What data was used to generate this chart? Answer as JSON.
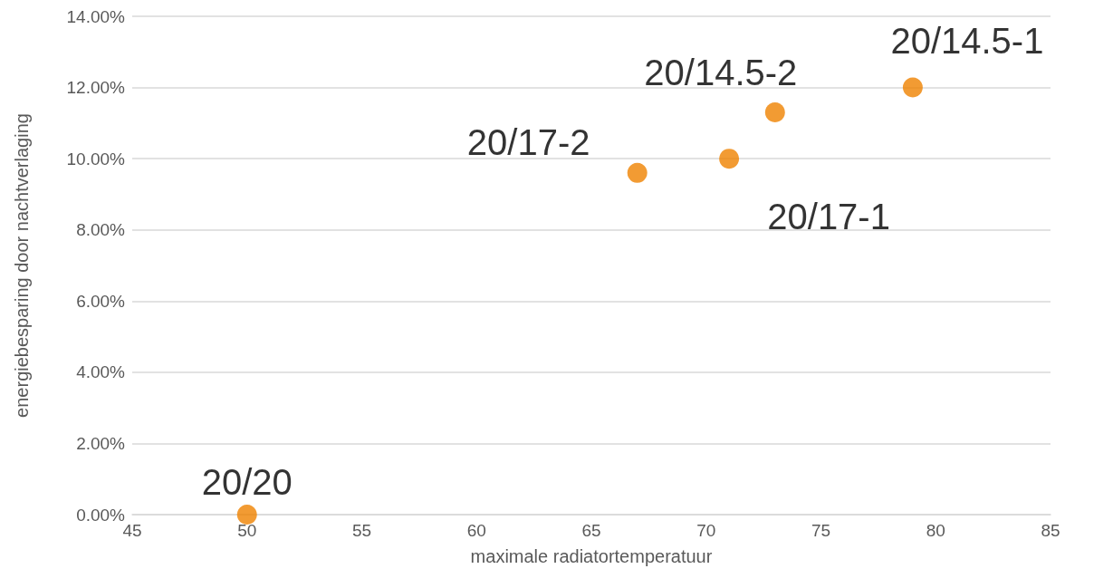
{
  "chart_data": {
    "type": "scatter",
    "xlabel": "maximale radiatortemperatuur",
    "ylabel": "energiebesparing door nachtverlaging",
    "x": [
      50,
      67,
      71,
      73,
      79
    ],
    "series": [
      {
        "color": "#ef8200",
        "values": [
          0,
          9.6,
          10.0,
          11.3,
          12.0
        ]
      }
    ],
    "annotations": [
      {
        "text": "20/20",
        "x": 50,
        "y": 0
      },
      {
        "text": "20/17-2",
        "x": 67,
        "y": 9.6
      },
      {
        "text": "20/17-1",
        "x": 71,
        "y": 10.0
      },
      {
        "text": "20/14.5-2",
        "x": 73,
        "y": 11.3
      },
      {
        "text": "20/14.5-1",
        "x": 79,
        "y": 12.0
      }
    ],
    "xlim": [
      45,
      85
    ],
    "xticks": [
      45,
      50,
      55,
      60,
      65,
      70,
      75,
      80,
      85
    ],
    "ylim": [
      0,
      14
    ],
    "yticks": [
      {
        "value": 0,
        "label": "0.00%"
      },
      {
        "value": 2,
        "label": "2.00%"
      },
      {
        "value": 4,
        "label": "4.00%"
      },
      {
        "value": 6,
        "label": "6.00%"
      },
      {
        "value": 8,
        "label": "8.00%"
      },
      {
        "value": 10,
        "label": "10.00%"
      },
      {
        "value": 12,
        "label": "12.00%"
      },
      {
        "value": 14,
        "label": "14.00%"
      }
    ],
    "grid": "y",
    "marker": "circle"
  }
}
